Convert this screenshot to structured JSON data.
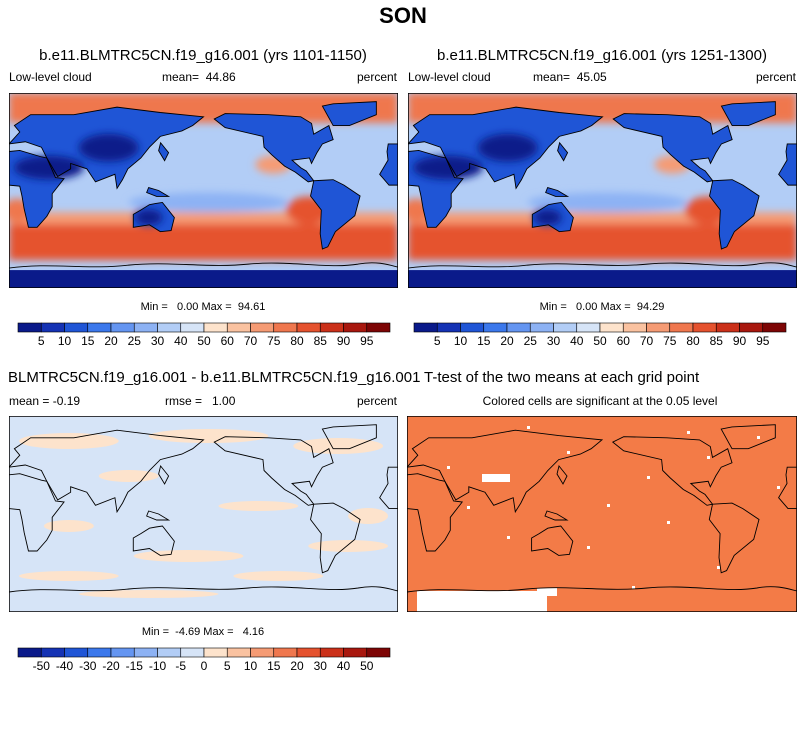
{
  "title": "SON",
  "panels": [
    {
      "title": "b.e11.BLMTRC5CN.f19_g16.001 (yrs 1101-1150)",
      "left_label": "Low-level cloud",
      "center_label": "mean=  44.86",
      "right_label": "percent",
      "stats": "Min =   0.00 Max =  94.61",
      "colorbar": {
        "labels": [
          5,
          10,
          15,
          20,
          25,
          30,
          40,
          50,
          60,
          70,
          75,
          80,
          85,
          90,
          95
        ],
        "colors": [
          "#0a1a8a",
          "#1432b4",
          "#1f55d6",
          "#3b78ec",
          "#6495f1",
          "#8db2f4",
          "#b2cdf6",
          "#d6e4f7",
          "#fde3cc",
          "#fac2a0",
          "#f59b74",
          "#ef774e",
          "#e5522e",
          "#cb3019",
          "#a8170e",
          "#7d0505"
        ]
      }
    },
    {
      "title": "b.e11.BLMTRC5CN.f19_g16.001 (yrs 1251-1300)",
      "left_label": "Low-level cloud",
      "center_label": "mean=  45.05",
      "right_label": "percent",
      "stats": "Min =   0.00 Max =  94.29",
      "colorbar": {
        "labels": [
          5,
          10,
          15,
          20,
          25,
          30,
          40,
          50,
          60,
          70,
          75,
          80,
          85,
          90,
          95
        ],
        "colors": [
          "#0a1a8a",
          "#1432b4",
          "#1f55d6",
          "#3b78ec",
          "#6495f1",
          "#8db2f4",
          "#b2cdf6",
          "#d6e4f7",
          "#fde3cc",
          "#fac2a0",
          "#f59b74",
          "#ef774e",
          "#e5522e",
          "#cb3019",
          "#a8170e",
          "#7d0505"
        ]
      }
    },
    {
      "title": "BLMTRC5CN.f19_g16.001 - b.e11.BLMTRC5CN.f19_g16.001",
      "left_label": "mean = -0.19",
      "center_label": "rmse =   1.00",
      "right_label": "percent",
      "stats": "Min =  -4.69 Max =   4.16",
      "colorbar": {
        "labels": [
          -50,
          -40,
          -30,
          -20,
          -15,
          -10,
          -5,
          0,
          5,
          10,
          15,
          20,
          30,
          40,
          50
        ],
        "colors": [
          "#0a1a8a",
          "#1432b4",
          "#1f55d6",
          "#3b78ec",
          "#6495f1",
          "#8db2f4",
          "#b2cdf6",
          "#d6e4f7",
          "#fde3cc",
          "#fac2a0",
          "#f59b74",
          "#ef774e",
          "#e5522e",
          "#cb3019",
          "#a8170e",
          "#7d0505"
        ]
      }
    },
    {
      "title": "T-test of the two means at each grid point",
      "subtitle": "Colored cells are significant at the 0.05 level"
    }
  ]
}
